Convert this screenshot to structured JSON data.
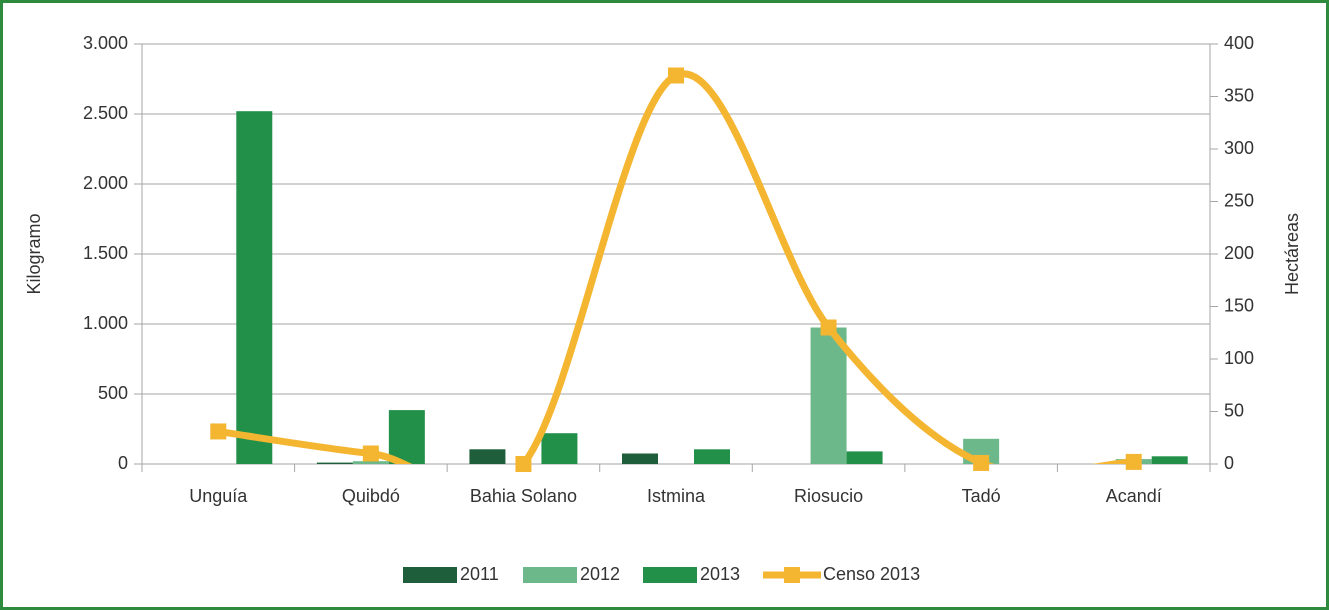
{
  "chart_data": {
    "type": "bar",
    "categories": [
      "Unguía",
      "Quibdó",
      "Bahia Solano",
      "Istmina",
      "Riosucio",
      "Tadó",
      "Acandí"
    ],
    "ylabel": "Kilogramo",
    "y2label": "Hectáreas",
    "ylim": [
      0,
      3000
    ],
    "yticks": [
      0,
      500,
      {
        "value": 1000,
        "label": "1.000"
      },
      {
        "value": 1500,
        "label": "1.500"
      },
      {
        "value": 2000,
        "label": "2.000"
      },
      {
        "value": 2500,
        "label": "2.500"
      },
      {
        "value": 3000,
        "label": "3.000"
      }
    ],
    "y2lim": [
      0,
      400
    ],
    "y2ticks": [
      0,
      50,
      100,
      150,
      200,
      250,
      300,
      350,
      400
    ],
    "grid": true,
    "legend": "bottom",
    "series": [
      {
        "name": "2011",
        "color": "#1f5e3a",
        "type": "bar",
        "values": [
          0,
          10,
          105,
          75,
          0,
          0,
          0
        ]
      },
      {
        "name": "2012",
        "color": "#6db88a",
        "type": "bar",
        "values": [
          0,
          20,
          0,
          0,
          975,
          180,
          35
        ]
      },
      {
        "name": "2013",
        "color": "#23904a",
        "type": "bar",
        "values": [
          2520,
          385,
          220,
          105,
          90,
          0,
          55
        ]
      },
      {
        "name": "Censo 2013",
        "color": "#f4b531",
        "type": "line",
        "axis": "y2",
        "smooth": true,
        "values": [
          31,
          10,
          0,
          370,
          130,
          1,
          2
        ]
      }
    ]
  }
}
